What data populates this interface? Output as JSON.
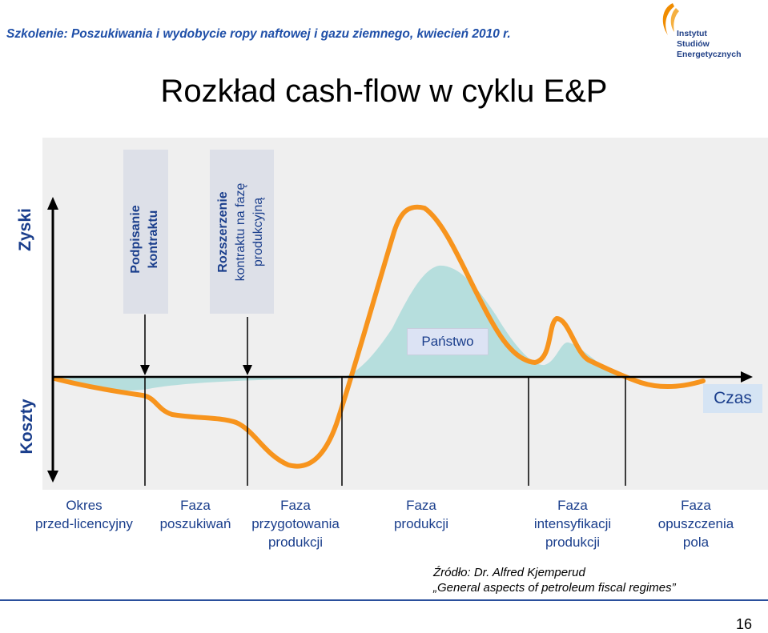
{
  "header": {
    "course": "Szkolenie: Poszukiwania i wydobycie ropy naftowej i gazu ziemnego, kwiecień 2010 r."
  },
  "logo": {
    "line1": "Instytut",
    "line2": "Studiów Energetycznych",
    "accent_color": "#f08c00"
  },
  "slide": {
    "title": "Rozkład cash-flow w cyklu E&P",
    "page_number": "16"
  },
  "diagram": {
    "y_axis_top": "Zyski",
    "y_axis_bottom": "Koszty",
    "x_axis_label": "Czas",
    "markers": [
      {
        "line1": "Podpisanie",
        "line2": "kontraktu"
      },
      {
        "line1": "Rozszerzenie",
        "line2": "kontraktu na fazę",
        "line3": "produkcyjną"
      }
    ],
    "state_label": "Państwo",
    "curve_color": "#f7941d",
    "state_area_color": "#b6dedd",
    "phases": [
      {
        "line1": "Okres",
        "line2": "przed-licencyjny"
      },
      {
        "line1": "Faza",
        "line2": "poszukiwań"
      },
      {
        "line1": "Faza",
        "line2": "przygotowania",
        "line3": "produkcji"
      },
      {
        "line1": "Faza",
        "line2": "produkcji"
      },
      {
        "line1": "Faza",
        "line2": "intensyfikacji",
        "line3": "produkcji"
      },
      {
        "line1": "Faza",
        "line2": "opuszczenia",
        "line3": "pola"
      }
    ]
  },
  "source": {
    "line1": "Źródło: Dr. Alfred Kjemperud",
    "line2": "„General aspects of petroleum fiscal regimes”"
  }
}
